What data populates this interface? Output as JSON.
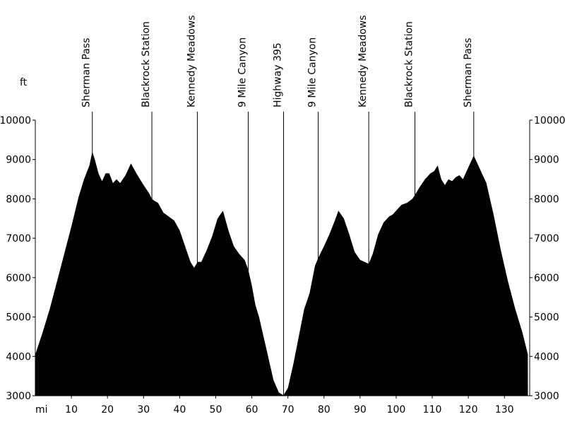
{
  "chart_data": {
    "type": "area",
    "ylabel": "ft",
    "xlabel": "mi",
    "xlim": [
      0,
      137
    ],
    "ylim": [
      3000,
      10000
    ],
    "x_ticks": [
      "10",
      "20",
      "30",
      "40",
      "50",
      "60",
      "70",
      "80",
      "90",
      "100",
      "110",
      "120",
      "130"
    ],
    "x_tick_values": [
      10,
      20,
      30,
      40,
      50,
      60,
      70,
      80,
      90,
      100,
      110,
      120,
      130
    ],
    "y_ticks": [
      "3000",
      "4000",
      "5000",
      "6000",
      "7000",
      "8000",
      "9000",
      "10000"
    ],
    "y_tick_values": [
      3000,
      4000,
      5000,
      6000,
      7000,
      8000,
      9000,
      10000
    ],
    "grid": false,
    "fill_color": "#000000",
    "waypoints": [
      {
        "name": "Sherman Pass",
        "mile": 15.8
      },
      {
        "name": "Blackrock Station",
        "mile": 32.3
      },
      {
        "name": "Kennedy Meadows",
        "mile": 44.9
      },
      {
        "name": "9 Mile Canyon",
        "mile": 59.0
      },
      {
        "name": "Highway 395",
        "mile": 68.8
      },
      {
        "name": "9 Mile Canyon",
        "mile": 78.4
      },
      {
        "name": "Kennedy Meadows",
        "mile": 92.4
      },
      {
        "name": "Blackrock Station",
        "mile": 105.2
      },
      {
        "name": "Sherman Pass",
        "mile": 121.5
      }
    ],
    "series": [
      {
        "x": [
          0,
          2,
          4,
          6,
          8,
          10,
          12,
          13.5,
          15,
          15.8,
          16.5,
          17.5,
          18.5,
          19.5,
          20.5,
          21.5,
          22.5,
          23.5,
          25,
          26.5,
          28,
          30,
          31.5,
          32.3,
          33,
          34,
          35.5,
          37,
          38.5,
          40,
          41.5,
          43,
          44,
          45,
          46,
          47.5,
          49,
          50.5,
          52,
          53.5,
          55,
          56.5,
          58,
          59,
          60,
          61,
          62,
          63,
          64.5,
          66,
          67.5,
          68.8,
          70,
          71.5,
          73,
          74.5,
          76,
          77.5,
          78.4,
          80,
          81.5,
          83,
          84,
          85.5,
          87,
          88.5,
          90,
          92.4,
          93.5,
          95,
          96.5,
          98,
          99,
          100,
          101.5,
          103,
          104.5,
          105.2,
          106.5,
          108,
          109.5,
          110.5,
          111.5,
          112.5,
          113.5,
          114.5,
          115.5,
          116.5,
          117.5,
          118.5,
          119.5,
          120.5,
          121.5,
          123,
          125,
          127,
          129,
          131,
          133,
          135,
          136.5
        ],
        "y": [
          4050,
          4600,
          5200,
          5900,
          6600,
          7300,
          8050,
          8500,
          8850,
          9200,
          9000,
          8650,
          8450,
          8650,
          8650,
          8400,
          8500,
          8400,
          8600,
          8900,
          8650,
          8350,
          8150,
          8000,
          7950,
          7900,
          7650,
          7550,
          7450,
          7200,
          6800,
          6400,
          6250,
          6400,
          6400,
          6700,
          7050,
          7500,
          7700,
          7200,
          6800,
          6600,
          6450,
          6200,
          5800,
          5300,
          5000,
          4600,
          4000,
          3400,
          3080,
          3010,
          3200,
          3800,
          4500,
          5200,
          5600,
          6300,
          6500,
          6800,
          7100,
          7450,
          7700,
          7500,
          7100,
          6650,
          6450,
          6350,
          6600,
          7100,
          7400,
          7550,
          7600,
          7700,
          7850,
          7900,
          8000,
          8100,
          8300,
          8500,
          8650,
          8700,
          8850,
          8500,
          8350,
          8500,
          8450,
          8550,
          8600,
          8500,
          8700,
          8900,
          9100,
          8800,
          8400,
          7600,
          6700,
          5900,
          5200,
          4600,
          4050
        ]
      }
    ]
  }
}
